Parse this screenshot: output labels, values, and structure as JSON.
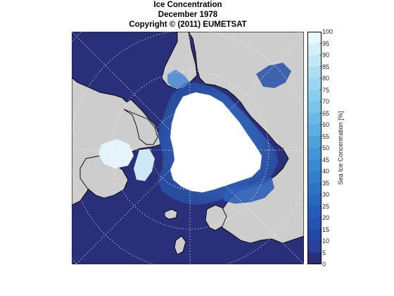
{
  "figure": {
    "title_line1": "Ice Concentration",
    "title_line2": "December 1978",
    "title_line3": "Copyright © (2011) EUMETSAT"
  },
  "map": {
    "projection": "north polar stereographic",
    "region": "Arctic",
    "graticule": "dotted",
    "colors": {
      "ocean": "#2a2f7a",
      "land": "#cdcdcd",
      "coastline": "#000000",
      "ice_high": "#ffffff"
    }
  },
  "colorbar": {
    "label": "Sea Ice Concentration [%]",
    "min": 0,
    "max": 100,
    "ticks": [
      "100",
      "95",
      "90",
      "85",
      "80",
      "75",
      "70",
      "65",
      "60",
      "55",
      "50",
      "45",
      "40",
      "35",
      "30",
      "25",
      "20",
      "15",
      "10",
      "5",
      "0"
    ],
    "colors": [
      "#2b2f7a",
      "#2a3f98",
      "#2547a8",
      "#2452b2",
      "#255cb9",
      "#2867c0",
      "#2c72c6",
      "#327ecc",
      "#398ad2",
      "#4296d7",
      "#4da2dc",
      "#5aaee0",
      "#68b9e4",
      "#78c3e8",
      "#89cdec",
      "#9bd6ef",
      "#addff3",
      "#c0e8f6",
      "#d3f0f9",
      "#e8f7fc"
    ]
  }
}
